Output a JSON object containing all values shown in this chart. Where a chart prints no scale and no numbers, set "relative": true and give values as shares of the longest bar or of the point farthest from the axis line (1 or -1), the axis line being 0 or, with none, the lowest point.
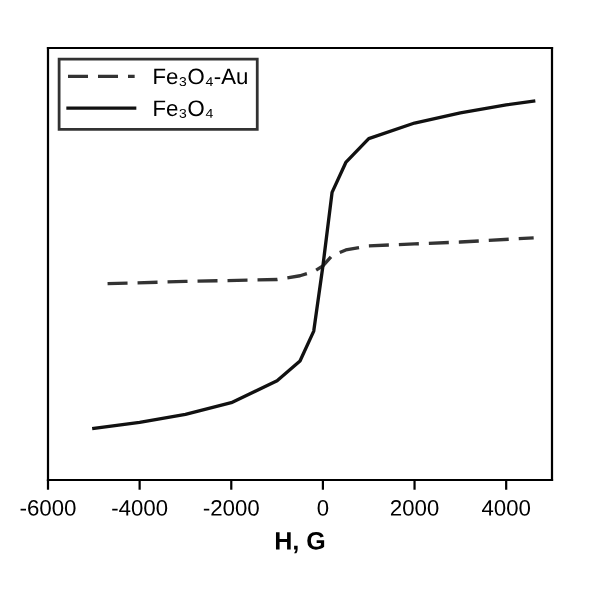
{
  "chart_data": {
    "type": "line",
    "relative": true,
    "xlabel": "H, G",
    "xlim": [
      -6000,
      5000
    ],
    "xticks": [
      -6000,
      -4000,
      -2000,
      0,
      2000,
      4000
    ],
    "legend": "top left",
    "grid": false,
    "series": [
      {
        "name": "Fe₃O₄-Au",
        "color": "#333333",
        "line_style": "dashed",
        "x": [
          -4700,
          -3000,
          -1000,
          -500,
          -200,
          0,
          200,
          500,
          1000,
          2000,
          3000,
          4600
        ],
        "values": [
          0.518,
          0.524,
          0.529,
          0.539,
          0.55,
          0.565,
          0.592,
          0.607,
          0.618,
          0.623,
          0.628,
          0.639
        ]
      },
      {
        "name": "Fe₃O₄",
        "color": "#111111",
        "line_style": "solid",
        "x": [
          -5000,
          -4000,
          -3000,
          -2000,
          -1000,
          -500,
          -200,
          0,
          200,
          500,
          1000,
          2000,
          3000,
          4000,
          4600
        ],
        "values": [
          0.136,
          0.152,
          0.173,
          0.204,
          0.262,
          0.314,
          0.393,
          0.565,
          0.759,
          0.838,
          0.901,
          0.942,
          0.969,
          0.99,
          1.0
        ]
      }
    ]
  }
}
